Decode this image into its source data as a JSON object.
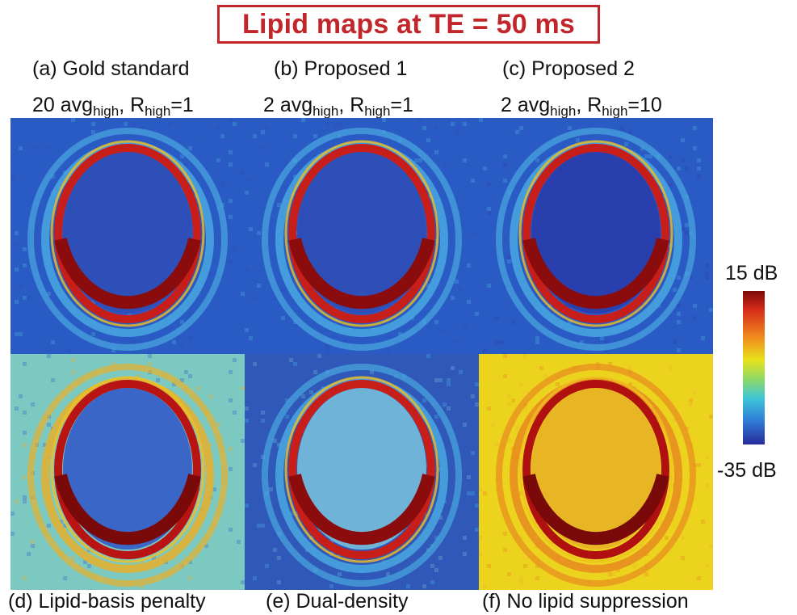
{
  "title": "Lipid maps at TE = 50 ms",
  "panels": [
    {
      "id": "a",
      "title": "(a) Gold standard",
      "sub": {
        "prefix": "20 avg",
        "sub1": "high",
        "mid": ", R",
        "sub2": "high",
        "suffix": "=1"
      },
      "caption": ""
    },
    {
      "id": "b",
      "title": "(b) Proposed 1",
      "sub": {
        "prefix": "2 avg",
        "sub1": "high",
        "mid": ", R",
        "sub2": "high",
        "suffix": "=1"
      },
      "caption": ""
    },
    {
      "id": "c",
      "title": "(c) Proposed 2",
      "sub": {
        "prefix": "2 avg",
        "sub1": "high",
        "mid": ", R",
        "sub2": "high",
        "suffix": "=10"
      },
      "caption": ""
    },
    {
      "id": "d",
      "title": "",
      "caption": "(d) Lipid-basis penalty"
    },
    {
      "id": "e",
      "title": "",
      "caption": "(e) Dual-density"
    },
    {
      "id": "f",
      "title": "",
      "caption": "(f) No lipid suppression"
    }
  ],
  "colorbar": {
    "max_label": "15 dB",
    "min_label": "-35 dB",
    "colors": [
      "#7a0a0a",
      "#d62a1a",
      "#f08a1e",
      "#e8e21c",
      "#8ad86a",
      "#3fc6d8",
      "#2f7fd8",
      "#262a9a"
    ]
  },
  "panel_colors": {
    "a": {
      "bg": "#2a5bc4",
      "inner": "#2f4fb8",
      "ring": "#c81e1a",
      "ring_dark": "#8a0c0c",
      "halo": "#4aa8e0"
    },
    "b": {
      "bg": "#2a5bc4",
      "inner": "#2f4fb8",
      "ring": "#c81e1a",
      "ring_dark": "#8a0c0c",
      "halo": "#4aa8e0"
    },
    "c": {
      "bg": "#2a5bc4",
      "inner": "#2a3fae",
      "ring": "#c81e1a",
      "ring_dark": "#8a0c0c",
      "halo": "#4aa8e0"
    },
    "d": {
      "bg": "#7cc9c2",
      "inner": "#3a66c8",
      "ring": "#b81414",
      "ring_dark": "#7a0a0a",
      "halo": "#e8b02a"
    },
    "e": {
      "bg": "#2f58b8",
      "inner": "#6fb4d8",
      "ring": "#c81e1a",
      "ring_dark": "#8a0c0c",
      "halo": "#4aa8e0"
    },
    "f": {
      "bg": "#ecd41e",
      "inner": "#e8b624",
      "ring": "#b01010",
      "ring_dark": "#7a0a0a",
      "halo": "#e88a20"
    }
  }
}
